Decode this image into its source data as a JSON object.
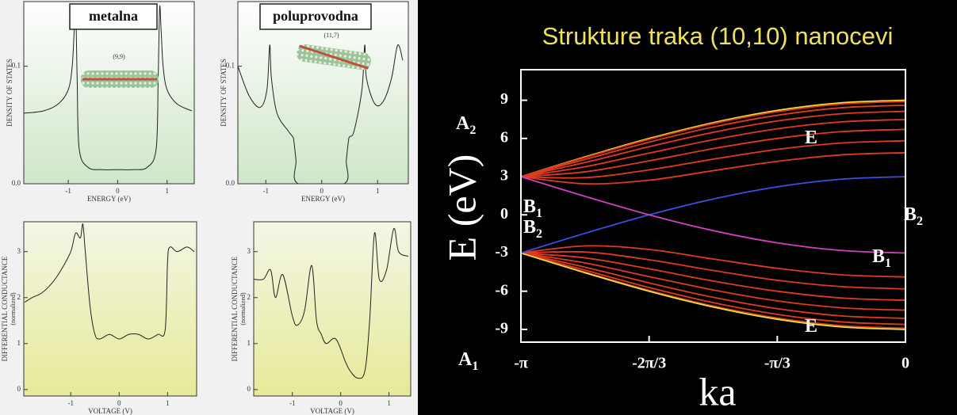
{
  "chart_data": [
    {
      "type": "line",
      "title": "metalna",
      "annotation": "(9,9)",
      "x_label": "ENERGY (eV)",
      "y_label": "DENSITY OF STATES",
      "color": "#222222",
      "x": [
        -1.9,
        -1.5,
        -1.2,
        -1.0,
        -0.92,
        -0.88,
        -0.85,
        -0.82,
        -0.78,
        -0.6,
        -0.3,
        0,
        0.3,
        0.6,
        0.78,
        0.82,
        0.85,
        0.88,
        0.92,
        1.0,
        1.2,
        1.5
      ],
      "values": [
        0.06,
        0.062,
        0.068,
        0.08,
        0.1,
        0.13,
        0.15,
        0.09,
        0.03,
        0.014,
        0.012,
        0.012,
        0.012,
        0.014,
        0.03,
        0.09,
        0.15,
        0.13,
        0.1,
        0.08,
        0.068,
        0.062
      ],
      "xlim": [
        -1.9,
        1.55
      ],
      "ylim": [
        0,
        0.155
      ],
      "xticks": [
        -1,
        0,
        1
      ],
      "yticks": [
        {
          "value": 0,
          "label": "0.0"
        },
        0.1
      ]
    },
    {
      "type": "line",
      "title": "poluprovodna",
      "annotation": "(11,7)",
      "x_label": "ENERGY (eV)",
      "y_label": "DENSITY OF STATES",
      "color": "#222222",
      "x": [
        -1.5,
        -1.3,
        -1.1,
        -0.98,
        -0.93,
        -0.9,
        -0.8,
        -0.6,
        -0.52,
        -0.5,
        -0.46,
        -0.42,
        0.4,
        0.44,
        0.48,
        0.5,
        0.58,
        0.72,
        0.77,
        0.8,
        0.95,
        1.1,
        1.25,
        1.36,
        1.45
      ],
      "values": [
        0.1,
        0.075,
        0.065,
        0.08,
        0.118,
        0.09,
        0.06,
        0.045,
        0.04,
        0.037,
        0.02,
        0,
        0,
        0.02,
        0.037,
        0.04,
        0.045,
        0.08,
        0.118,
        0.09,
        0.068,
        0.07,
        0.09,
        0.118,
        0.105
      ],
      "xlim": [
        -1.5,
        1.55
      ],
      "ylim": [
        0,
        0.155
      ],
      "xticks": [
        -1,
        0,
        1
      ],
      "yticks": [
        {
          "value": 0,
          "label": "0.0"
        },
        0.1
      ]
    },
    {
      "type": "line",
      "x_label": "VOLTAGE (V)",
      "y_label": "DIFFERENTIAL CONDUCTANCE",
      "y_sublabel": "(normalized)",
      "color": "#222222",
      "x": [
        -1.95,
        -1.8,
        -1.6,
        -1.4,
        -1.2,
        -1.0,
        -0.9,
        -0.8,
        -0.75,
        -0.7,
        -0.6,
        -0.5,
        -0.4,
        -0.2,
        0,
        0.2,
        0.4,
        0.6,
        0.8,
        0.95,
        1.0,
        1.05,
        1.2,
        1.4,
        1.55
      ],
      "values": [
        1.9,
        2.0,
        2.1,
        2.3,
        2.6,
        3.0,
        3.4,
        3.3,
        3.6,
        3.0,
        1.8,
        1.2,
        1.1,
        1.2,
        1.1,
        1.2,
        1.2,
        1.1,
        1.2,
        1.3,
        2.8,
        3.1,
        3.0,
        3.1,
        3.0
      ],
      "xlim": [
        -1.97,
        1.6
      ],
      "ylim": [
        -0.14,
        3.65
      ],
      "xticks": [
        -1,
        0,
        1
      ],
      "yticks": [
        0,
        1,
        2,
        3
      ]
    },
    {
      "type": "line",
      "x_label": "VOLTAGE (V)",
      "y_label": "DIFFERENTIAL CONDUCTANCE",
      "y_sublabel": "(normalized)",
      "color": "#222222",
      "x": [
        -1.8,
        -1.6,
        -1.45,
        -1.35,
        -1.2,
        -1.0,
        -0.9,
        -0.75,
        -0.6,
        -0.5,
        -0.4,
        -0.3,
        -0.1,
        0.1,
        0.2,
        0.35,
        0.5,
        0.6,
        0.7,
        0.8,
        0.95,
        1.1,
        1.2,
        1.4
      ],
      "values": [
        2.4,
        2.4,
        2.6,
        2.0,
        2.5,
        1.6,
        1.4,
        1.7,
        2.7,
        1.5,
        1.2,
        1.0,
        1.1,
        0.6,
        0.4,
        0.25,
        0.4,
        1.5,
        3.4,
        2.4,
        2.6,
        3.5,
        3.0,
        2.9
      ],
      "xlim": [
        -1.8,
        1.45
      ],
      "ylim": [
        -0.14,
        3.65
      ],
      "xticks": [
        -1,
        0,
        1
      ],
      "yticks": [
        0,
        1,
        2,
        3
      ]
    },
    {
      "type": "line",
      "title": "Strukture traka (10,10) nanocevi",
      "x_label": "ka",
      "y_label": "E (eV)",
      "x": [
        -3.1416,
        -2.618,
        -2.0944,
        -1.5708,
        -1.0472,
        -0.5236,
        0
      ],
      "xlim": [
        -3.1416,
        0
      ],
      "ylim": [
        -10,
        11.4
      ],
      "xticks": [
        {
          "value": -3.1416,
          "label": "-π"
        },
        {
          "value": -2.0944,
          "label": "-2π/3"
        },
        {
          "value": -1.0472,
          "label": "-π/3"
        },
        0
      ],
      "yticks": [
        -9,
        -6,
        -3,
        0,
        3,
        6,
        9
      ],
      "series": [
        {
          "color": "#f0e040",
          "values": [
            3,
            4.55,
            6,
            7.24,
            8.2,
            8.8,
            9
          ]
        },
        {
          "color": "#e03a20",
          "values": [
            3,
            4.5,
            5.93,
            7.16,
            8.1,
            8.7,
            8.9
          ]
        },
        {
          "color": "#e03a20",
          "values": [
            3,
            4.35,
            5.71,
            6.9,
            7.82,
            8.41,
            8.61
          ]
        },
        {
          "color": "#e03a20",
          "values": [
            3,
            4.11,
            5.35,
            6.48,
            7.37,
            7.94,
            8.13
          ]
        },
        {
          "color": "#e03a20",
          "values": [
            3,
            3.78,
            4.85,
            5.9,
            6.76,
            7.3,
            7.49
          ]
        },
        {
          "color": "#e03a20",
          "values": [
            3,
            3.38,
            4.24,
            5.2,
            6,
            6.53,
            6.71
          ]
        },
        {
          "color": "#e03a20",
          "values": [
            3,
            2.92,
            3.53,
            4.37,
            5.14,
            5.64,
            5.82
          ]
        },
        {
          "color": "#e03a20",
          "values": [
            3,
            2.44,
            2.72,
            3.47,
            4.2,
            4.71,
            4.88
          ]
        },
        {
          "color": "#e03a20",
          "values": [
            -3,
            -4.5,
            -5.93,
            -7.16,
            -8.1,
            -8.7,
            -8.9
          ]
        },
        {
          "color": "#e03a20",
          "values": [
            -3,
            -4.35,
            -5.71,
            -6.9,
            -7.82,
            -8.41,
            -8.61
          ]
        },
        {
          "color": "#e03a20",
          "values": [
            -3,
            -4.11,
            -5.35,
            -6.48,
            -7.37,
            -7.94,
            -8.13
          ]
        },
        {
          "color": "#e03a20",
          "values": [
            -3,
            -3.78,
            -4.85,
            -5.9,
            -6.76,
            -7.3,
            -7.49
          ]
        },
        {
          "color": "#e03a20",
          "values": [
            -3,
            -3.38,
            -4.24,
            -5.2,
            -6,
            -6.53,
            -6.71
          ]
        },
        {
          "color": "#e03a20",
          "values": [
            -3,
            -2.92,
            -3.53,
            -4.37,
            -5.14,
            -5.64,
            -5.82
          ]
        },
        {
          "color": "#e03a20",
          "values": [
            -3,
            -2.44,
            -2.72,
            -3.47,
            -4.2,
            -4.71,
            -4.88
          ]
        },
        {
          "color": "#f0e040",
          "values": [
            -3,
            -4.55,
            -6,
            -7.24,
            -8.2,
            -8.8,
            -9
          ]
        },
        {
          "color": "#3a50e0",
          "values": [
            -3,
            -1.45,
            0,
            1.24,
            2.2,
            2.8,
            3
          ]
        },
        {
          "color": "#d040c0",
          "values": [
            3,
            1.45,
            0,
            -1.24,
            -2.2,
            -2.8,
            -3
          ]
        }
      ],
      "annotations": [
        {
          "text": "A",
          "subscript": "2"
        },
        {
          "text": "E"
        },
        {
          "text": "B",
          "subscript": "1"
        },
        {
          "text": "B",
          "subscript": "2"
        },
        {
          "text": "B",
          "subscript": "2"
        },
        {
          "text": "B",
          "subscript": "1"
        },
        {
          "text": "E"
        },
        {
          "text": "A",
          "subscript": "1"
        }
      ]
    }
  ]
}
